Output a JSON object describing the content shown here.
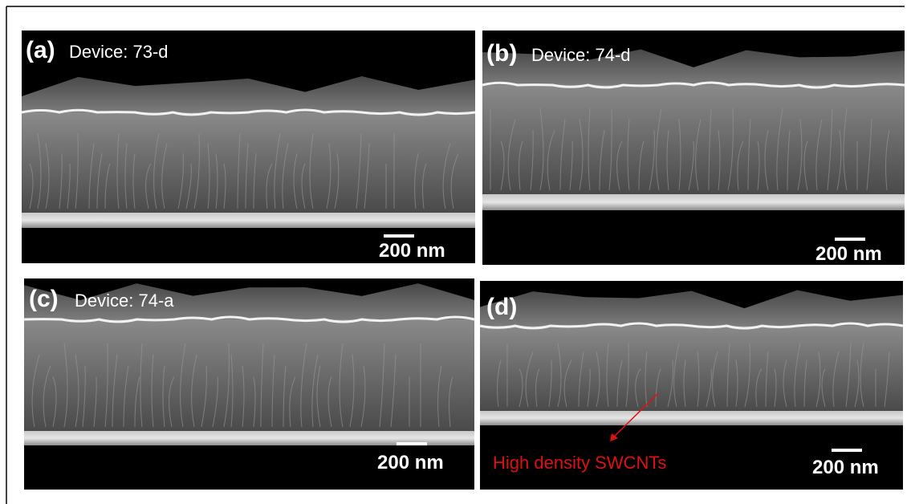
{
  "panels": [
    {
      "label": "(a)",
      "device": "Device: 73-d",
      "scale_bar": "200 nm"
    },
    {
      "label": "(b)",
      "device": "Device: 74-d",
      "scale_bar": "200 nm"
    },
    {
      "label": "(c)",
      "device": "Device: 74-a",
      "scale_bar": "200 nm"
    },
    {
      "label": "(d)",
      "scale_bar": "200 nm"
    }
  ],
  "annotation": "High density SWCNTs"
}
